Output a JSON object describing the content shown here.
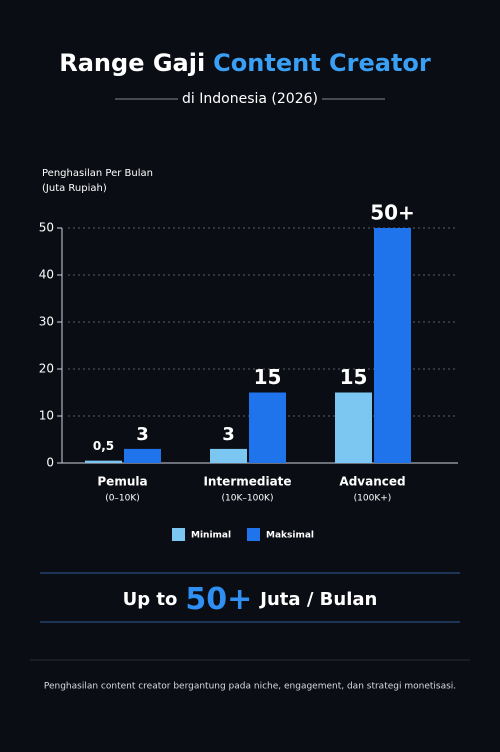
{
  "chart_data": {
    "type": "bar",
    "title": "Range Gaji",
    "title_highlight": "Content Creator",
    "subtitle": "di Indonesia (2026)",
    "y_label": [
      "Penghasilan Per Bulan",
      "(Juta Rupiah)"
    ],
    "categories": [
      "Pemula",
      "Intermediate",
      "Advanced"
    ],
    "category_notes": [
      "(0–10K)",
      "(10K–100K)",
      "(100K+)"
    ],
    "series": [
      {
        "name": "Minimal",
        "color": "#7cc6f2",
        "values": [
          0.5,
          3,
          15
        ],
        "value_labels": [
          "0,5",
          "3",
          "15"
        ]
      },
      {
        "name": "Maksimal",
        "color": "#1f74ec",
        "values": [
          3,
          15,
          50
        ],
        "value_labels": [
          "3",
          "15",
          "50+"
        ]
      }
    ],
    "ylim": [
      0,
      50
    ],
    "yticks": [
      0,
      10,
      20,
      30,
      40,
      50
    ],
    "grid": true,
    "legend": "bottom"
  },
  "banner": {
    "prefix": "Up to",
    "highlight": "50+",
    "suffix": "Juta / Bulan"
  },
  "footnote": "Penghasilan content creator bergantung pada niche, engagement, dan strategi monetisasi."
}
